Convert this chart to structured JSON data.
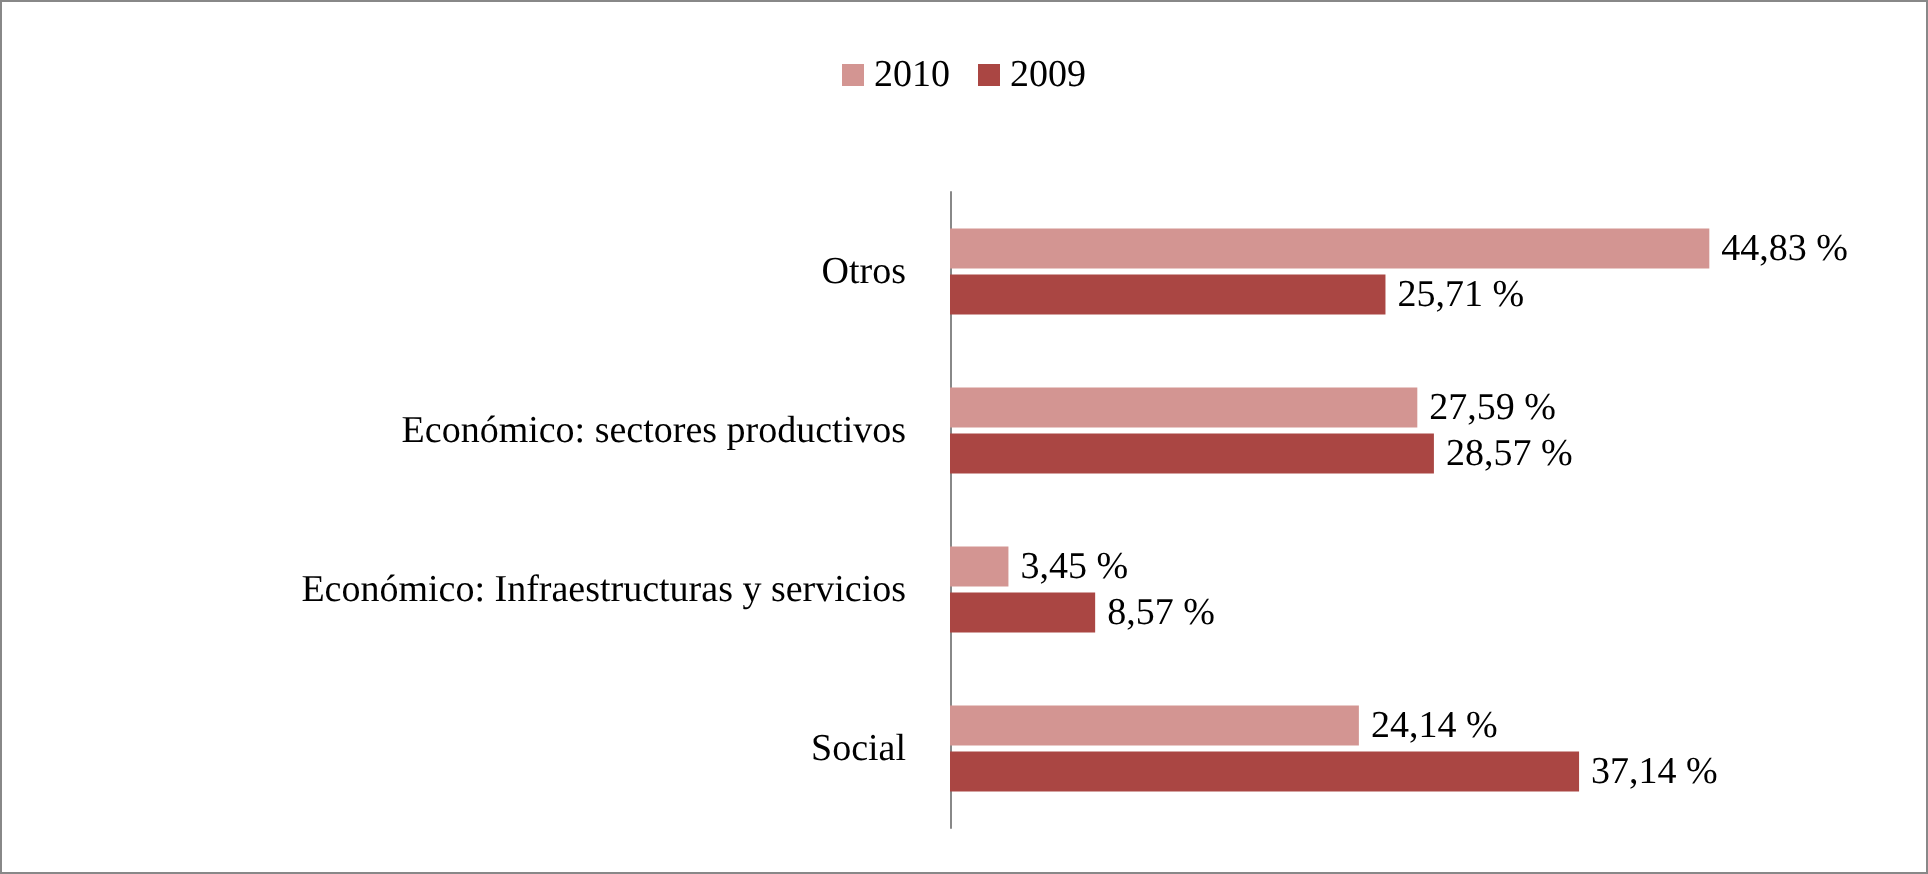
{
  "chart_data": {
    "type": "bar",
    "orientation": "horizontal",
    "categories": [
      "Otros",
      "Económico: sectores productivos",
      "Económico: Infraestructuras y servicios",
      "Social"
    ],
    "series": [
      {
        "name": "2010",
        "color": "#d39592",
        "values": [
          44.83,
          27.59,
          3.45,
          24.14
        ],
        "value_labels": [
          "44,83 %",
          "27,59 %",
          "3,45 %",
          "24,14 %"
        ]
      },
      {
        "name": "2009",
        "color": "#aa4643",
        "values": [
          25.71,
          28.57,
          8.57,
          37.14
        ],
        "value_labels": [
          "25,71 %",
          "28,57 %",
          "8,57 %",
          "37,14 %"
        ]
      }
    ],
    "legend": "top",
    "grid": false
  }
}
